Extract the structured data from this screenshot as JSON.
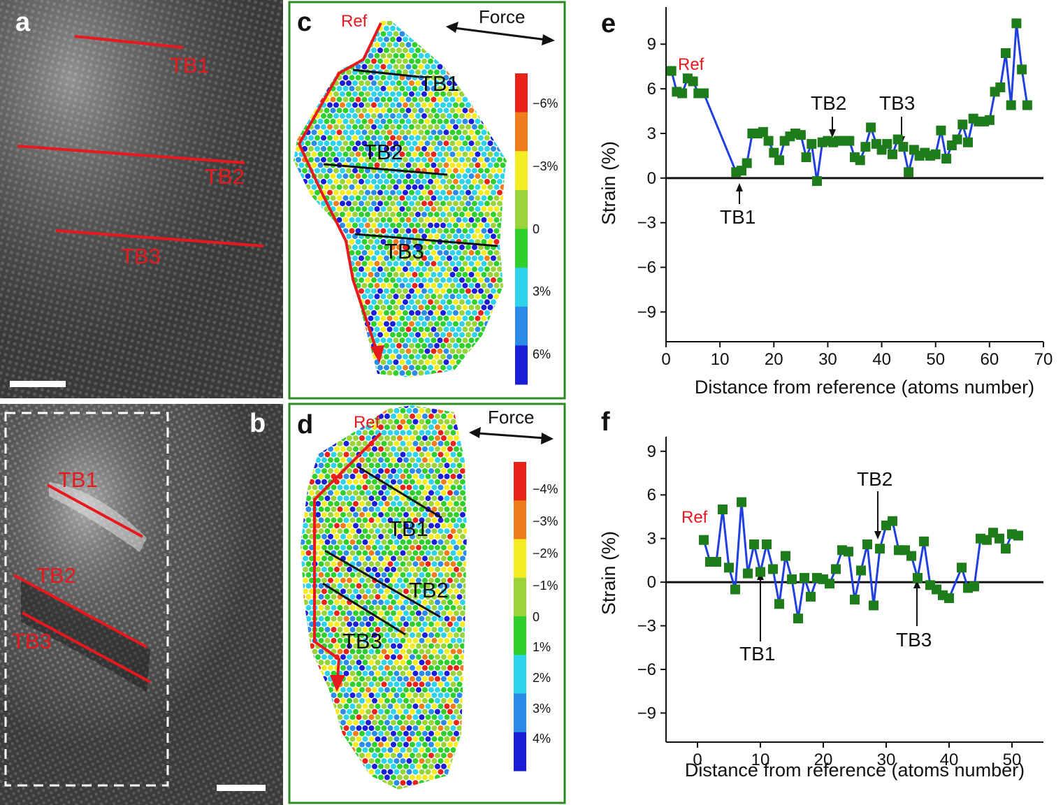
{
  "panels": {
    "a": {
      "letter": "a",
      "labels": [
        "TB1",
        "TB2",
        "TB3"
      ]
    },
    "b": {
      "letter": "b",
      "labels": [
        "TB1",
        "TB2",
        "TB3"
      ]
    },
    "c": {
      "letter": "c",
      "ref": "Ref",
      "force": "Force",
      "labels": [
        "TB1",
        "TB2",
        "TB3"
      ],
      "colorbar": [
        "−6%",
        "−3%",
        "0",
        "3%",
        "6%"
      ],
      "colors": [
        "#e8231a",
        "#f07d1c",
        "#f4ec22",
        "#9ad43a",
        "#2fcf2d",
        "#2fd3e9",
        "#2b8be6",
        "#1a1ed6"
      ]
    },
    "d": {
      "letter": "d",
      "ref": "Ref",
      "force": "Force",
      "labels": [
        "TB1",
        "TB2",
        "TB3"
      ],
      "colorbar": [
        "−4%",
        "−3%",
        "−2%",
        "−1%",
        "0",
        "1%",
        "2%",
        "3%",
        "4%"
      ],
      "colors": [
        "#e8231a",
        "#f07d1c",
        "#f4ec22",
        "#9ad43a",
        "#2fcf2d",
        "#2fd3e9",
        "#2b8be6",
        "#1a1ed6"
      ]
    }
  },
  "chart_data": [
    {
      "panel": "e",
      "type": "line",
      "ref_label": "Ref",
      "annotations": [
        "TB1",
        "TB2",
        "TB3"
      ],
      "xlabel": "Distance from reference (atoms number)",
      "ylabel": "Strain (%)",
      "xlim": [
        0,
        70
      ],
      "ylim": [
        -11,
        11.5
      ],
      "xticks": [
        0,
        10,
        20,
        30,
        40,
        50,
        60,
        70
      ],
      "yticks": [
        9,
        6,
        3,
        0,
        -3,
        -6,
        -9
      ],
      "ytick_labels": [
        "9",
        "6",
        "3",
        "0",
        "−3",
        "−6",
        "−9"
      ],
      "x": [
        1,
        2,
        3,
        4,
        5,
        6,
        7,
        13,
        14,
        15,
        16,
        17,
        18,
        19,
        20,
        21,
        22,
        23,
        24,
        25,
        26,
        27,
        28,
        29,
        30,
        31,
        32,
        33,
        34,
        35,
        36,
        37,
        38,
        39,
        40,
        41,
        42,
        43,
        44,
        45,
        46,
        47,
        48,
        49,
        50,
        51,
        52,
        53,
        54,
        55,
        56,
        57,
        58,
        59,
        60,
        61,
        62,
        63,
        64,
        65,
        66,
        67
      ],
      "y": [
        7.2,
        5.8,
        5.7,
        6.7,
        6.5,
        5.7,
        5.7,
        0.4,
        0.5,
        1.0,
        3.0,
        3.0,
        3.1,
        2.5,
        1.7,
        1.2,
        2.5,
        2.8,
        3.0,
        2.9,
        1.4,
        2.3,
        -0.2,
        2.4,
        2.5,
        2.4,
        2.5,
        2.5,
        2.5,
        1.4,
        1.2,
        2.1,
        3.4,
        2.3,
        1.9,
        2.3,
        1.6,
        2.6,
        2.1,
        0.4,
        1.9,
        1.5,
        1.7,
        1.5,
        1.6,
        3.2,
        1.3,
        2.2,
        2.6,
        3.6,
        2.4,
        4.0,
        3.8,
        3.8,
        3.9,
        5.8,
        6.1,
        8.4,
        4.9,
        10.4,
        7.3,
        4.9
      ]
    },
    {
      "panel": "f",
      "type": "line",
      "ref_label": "Ref",
      "annotations": [
        "TB2",
        "TB1",
        "TB3"
      ],
      "xlabel": "Distance from reference (atoms number)",
      "ylabel": "Strain (%)",
      "xlim": [
        -5,
        55
      ],
      "ylim": [
        -11,
        10
      ],
      "xticks": [
        0,
        10,
        20,
        30,
        40,
        50
      ],
      "yticks": [
        9,
        6,
        3,
        0,
        -3,
        -6,
        -9
      ],
      "ytick_labels": [
        "9",
        "6",
        "3",
        "0",
        "−3",
        "−6",
        "−9"
      ],
      "x": [
        1,
        2,
        3,
        4,
        5,
        6,
        7,
        8,
        9,
        10,
        11,
        12,
        13,
        14,
        15,
        16,
        17,
        18,
        19,
        20,
        21,
        22,
        23,
        24,
        25,
        26,
        27,
        28,
        29,
        30,
        31,
        32,
        33,
        34,
        35,
        36,
        37,
        38,
        39,
        40,
        42,
        43,
        44,
        45,
        46,
        47,
        48,
        49,
        50,
        51
      ],
      "y": [
        2.9,
        1.4,
        1.4,
        5.0,
        1.0,
        -0.5,
        5.5,
        0.6,
        2.6,
        0.7,
        2.6,
        0.9,
        -1.5,
        1.8,
        0.2,
        -2.5,
        0.3,
        -1.0,
        0.3,
        0.2,
        -0.1,
        0.9,
        2.2,
        2.1,
        -1.2,
        0.8,
        2.6,
        -1.6,
        2.3,
        3.9,
        4.2,
        2.2,
        2.2,
        1.8,
        0.3,
        2.8,
        -0.2,
        -0.5,
        -0.9,
        -1.1,
        1.0,
        -0.4,
        -0.3,
        3.0,
        2.9,
        3.4,
        3.0,
        2.3,
        3.3,
        3.2
      ]
    }
  ]
}
